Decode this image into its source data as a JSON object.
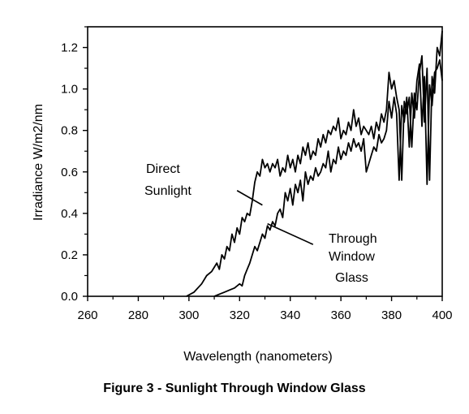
{
  "chart_data": {
    "type": "line",
    "title": "",
    "xlabel": "Wavelength (nanometers)",
    "ylabel": "Irradiance  W/m2/nm",
    "xlim": [
      260,
      400
    ],
    "ylim": [
      0.0,
      1.3
    ],
    "xticks": [
      260,
      280,
      300,
      320,
      340,
      360,
      380,
      400
    ],
    "xtick_labels": [
      "260",
      "280",
      "300",
      "320",
      "340",
      "360",
      "380",
      "400"
    ],
    "yticks": [
      0.0,
      0.2,
      0.4,
      0.6,
      0.8,
      1.0,
      1.2
    ],
    "ytick_labels": [
      "0.0",
      "0.2",
      "0.4",
      "0.6",
      "0.8",
      "1.0",
      "1.2"
    ],
    "grid": false,
    "series": [
      {
        "name": "Direct Sunlight",
        "x": [
          299,
          302,
          305,
          307,
          309,
          311,
          312,
          313,
          314,
          315,
          316,
          317,
          318,
          319,
          320,
          321,
          322,
          323,
          324,
          325,
          326,
          327,
          328,
          329,
          330,
          331,
          332,
          333,
          334,
          335,
          336,
          337,
          338,
          339,
          340,
          341,
          342,
          343,
          344,
          345,
          346,
          347,
          348,
          349,
          350,
          351,
          352,
          353,
          354,
          355,
          356,
          357,
          358,
          359,
          360,
          361,
          362,
          363,
          364,
          365,
          366,
          367,
          368,
          369,
          370,
          371,
          372,
          373,
          374,
          375,
          376,
          377,
          378,
          379,
          380,
          381,
          382,
          383,
          384,
          385,
          386,
          387,
          388,
          389,
          390,
          391,
          392,
          393,
          394,
          395,
          396,
          397,
          398,
          399,
          400
        ],
        "y": [
          0.0,
          0.02,
          0.06,
          0.1,
          0.12,
          0.16,
          0.13,
          0.2,
          0.18,
          0.24,
          0.22,
          0.3,
          0.26,
          0.33,
          0.3,
          0.38,
          0.36,
          0.4,
          0.39,
          0.46,
          0.55,
          0.6,
          0.58,
          0.66,
          0.62,
          0.64,
          0.6,
          0.64,
          0.62,
          0.66,
          0.58,
          0.62,
          0.6,
          0.68,
          0.62,
          0.66,
          0.6,
          0.68,
          0.64,
          0.72,
          0.68,
          0.74,
          0.66,
          0.7,
          0.68,
          0.76,
          0.72,
          0.78,
          0.74,
          0.8,
          0.78,
          0.82,
          0.8,
          0.86,
          0.76,
          0.8,
          0.78,
          0.84,
          0.8,
          0.9,
          0.82,
          0.86,
          0.78,
          0.82,
          0.8,
          0.78,
          0.82,
          0.76,
          0.84,
          0.8,
          0.88,
          0.84,
          0.9,
          1.08,
          1.0,
          1.04,
          0.96,
          0.9,
          0.56,
          0.94,
          0.88,
          0.96,
          0.72,
          0.98,
          0.9,
          1.08,
          1.16,
          0.84,
          1.1,
          0.56,
          1.06,
          0.98,
          1.2,
          1.16,
          1.28
        ]
      },
      {
        "name": "Through Window Glass",
        "x": [
          310,
          312,
          314,
          316,
          318,
          320,
          321,
          322,
          323,
          324,
          325,
          326,
          327,
          328,
          329,
          330,
          331,
          332,
          333,
          334,
          335,
          336,
          337,
          338,
          339,
          340,
          341,
          342,
          343,
          344,
          345,
          346,
          347,
          348,
          349,
          350,
          351,
          352,
          353,
          354,
          355,
          356,
          357,
          358,
          359,
          360,
          361,
          362,
          363,
          364,
          365,
          366,
          367,
          368,
          369,
          370,
          371,
          372,
          373,
          374,
          375,
          376,
          377,
          378,
          379,
          380,
          381,
          382,
          383,
          384,
          385,
          386,
          387,
          388,
          389,
          390,
          391,
          392,
          393,
          394,
          395,
          396,
          397,
          398,
          399,
          400
        ],
        "y": [
          0.0,
          0.01,
          0.02,
          0.03,
          0.04,
          0.06,
          0.05,
          0.1,
          0.13,
          0.16,
          0.2,
          0.24,
          0.22,
          0.26,
          0.3,
          0.28,
          0.34,
          0.32,
          0.36,
          0.34,
          0.4,
          0.42,
          0.38,
          0.5,
          0.46,
          0.52,
          0.44,
          0.54,
          0.5,
          0.56,
          0.46,
          0.6,
          0.54,
          0.58,
          0.56,
          0.62,
          0.58,
          0.6,
          0.64,
          0.62,
          0.7,
          0.6,
          0.66,
          0.64,
          0.72,
          0.66,
          0.7,
          0.68,
          0.74,
          0.7,
          0.76,
          0.72,
          0.74,
          0.7,
          0.76,
          0.6,
          0.64,
          0.68,
          0.72,
          0.7,
          0.78,
          0.74,
          0.76,
          0.8,
          0.94,
          0.86,
          0.96,
          0.88,
          0.56,
          0.92,
          0.84,
          0.96,
          0.72,
          0.98,
          0.86,
          1.04,
          1.12,
          0.82,
          1.06,
          0.54,
          1.02,
          0.92,
          1.08,
          1.1,
          1.14,
          1.04
        ]
      }
    ],
    "annotations": [
      {
        "lines": [
          "Direct",
          "Sunlight"
        ],
        "pointer_from": [
          325,
          0.49
        ],
        "pointer_to": [
          329,
          0.44
        ]
      },
      {
        "lines": [
          "Through",
          "Window",
          "Glass"
        ],
        "pointer_from": [
          337,
          0.33
        ],
        "pointer_to": [
          349,
          0.25
        ]
      }
    ]
  },
  "caption": "Figure 3 - Sunlight Through Window Glass"
}
